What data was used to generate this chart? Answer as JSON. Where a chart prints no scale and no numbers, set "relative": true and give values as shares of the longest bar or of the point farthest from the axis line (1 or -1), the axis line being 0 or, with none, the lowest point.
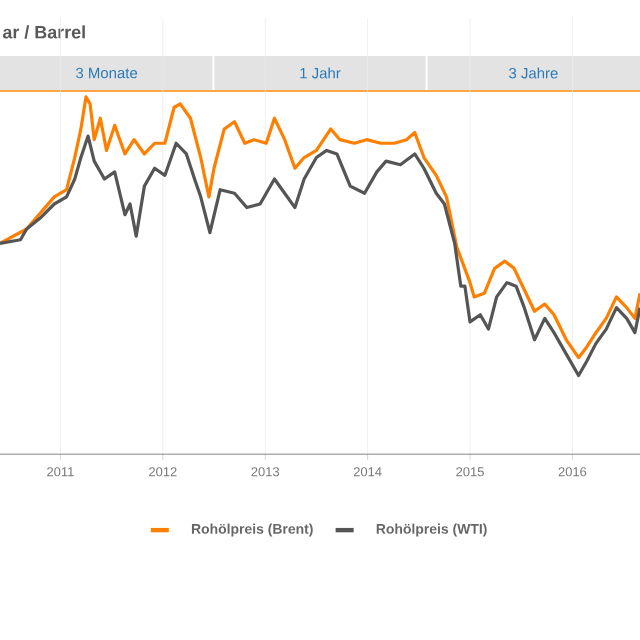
{
  "chart_data": {
    "type": "line",
    "title": "ar / Barrel",
    "relative": true,
    "annotations": [
      "3 Monate",
      "1 Jahr",
      "3 Jahre"
    ],
    "xlim": [
      2010.41,
      2016.66
    ],
    "xticks": [
      2011,
      2012,
      2013,
      2014,
      2015,
      2016
    ],
    "grid": "x",
    "legend": "bottom",
    "line_style": "solid",
    "marker": "none",
    "series": [
      {
        "name": "Rohölpreis (Brent)",
        "color": "#ff7f00",
        "x": [
          2010.41,
          2010.67,
          2010.94,
          2011.06,
          2011.14,
          2011.2,
          2011.25,
          2011.29,
          2011.33,
          2011.39,
          2011.45,
          2011.53,
          2011.63,
          2011.72,
          2011.82,
          2011.92,
          2012.02,
          2012.11,
          2012.17,
          2012.27,
          2012.37,
          2012.45,
          2012.5,
          2012.6,
          2012.7,
          2012.8,
          2012.89,
          2013.01,
          2013.09,
          2013.19,
          2013.29,
          2013.38,
          2013.5,
          2013.64,
          2013.73,
          2013.87,
          2013.99,
          2014.13,
          2014.26,
          2014.38,
          2014.46,
          2014.55,
          2014.67,
          2014.77,
          2014.87,
          2015.0,
          2015.04,
          2015.14,
          2015.24,
          2015.34,
          2015.43,
          2015.53,
          2015.63,
          2015.73,
          2015.82,
          2015.94,
          2016.06,
          2016.14,
          2016.23,
          2016.33,
          2016.43,
          2016.53,
          2016.61,
          2016.66
        ],
        "values": [
          0.59,
          0.63,
          0.72,
          0.74,
          0.83,
          0.91,
          1.0,
          0.98,
          0.88,
          0.94,
          0.85,
          0.92,
          0.84,
          0.88,
          0.84,
          0.87,
          0.87,
          0.97,
          0.98,
          0.94,
          0.83,
          0.72,
          0.8,
          0.91,
          0.93,
          0.87,
          0.88,
          0.87,
          0.94,
          0.88,
          0.8,
          0.83,
          0.85,
          0.91,
          0.88,
          0.87,
          0.88,
          0.87,
          0.87,
          0.88,
          0.9,
          0.83,
          0.78,
          0.72,
          0.58,
          0.48,
          0.44,
          0.45,
          0.52,
          0.54,
          0.52,
          0.46,
          0.4,
          0.42,
          0.39,
          0.32,
          0.27,
          0.3,
          0.34,
          0.38,
          0.44,
          0.41,
          0.38,
          0.45
        ]
      },
      {
        "name": "Rohölpreis (WTI)",
        "color": "#555555",
        "x": [
          2010.41,
          2010.61,
          2010.67,
          2010.8,
          2010.94,
          2011.06,
          2011.14,
          2011.2,
          2011.27,
          2011.33,
          2011.43,
          2011.53,
          2011.63,
          2011.68,
          2011.74,
          2011.82,
          2011.92,
          2012.02,
          2012.13,
          2012.23,
          2012.31,
          2012.37,
          2012.46,
          2012.56,
          2012.7,
          2012.82,
          2012.95,
          2013.09,
          2013.19,
          2013.29,
          2013.38,
          2013.5,
          2013.6,
          2013.7,
          2013.83,
          2013.97,
          2014.09,
          2014.18,
          2014.32,
          2014.46,
          2014.55,
          2014.67,
          2014.75,
          2014.85,
          2014.91,
          2014.95,
          2015.0,
          2015.1,
          2015.18,
          2015.26,
          2015.36,
          2015.45,
          2015.53,
          2015.63,
          2015.73,
          2015.82,
          2015.94,
          2016.06,
          2016.14,
          2016.23,
          2016.33,
          2016.43,
          2016.53,
          2016.61,
          2016.66
        ],
        "values": [
          0.59,
          0.6,
          0.63,
          0.66,
          0.7,
          0.72,
          0.77,
          0.83,
          0.89,
          0.82,
          0.77,
          0.79,
          0.67,
          0.7,
          0.61,
          0.75,
          0.8,
          0.78,
          0.87,
          0.84,
          0.77,
          0.72,
          0.62,
          0.74,
          0.73,
          0.69,
          0.7,
          0.77,
          0.73,
          0.69,
          0.77,
          0.83,
          0.85,
          0.84,
          0.75,
          0.73,
          0.79,
          0.82,
          0.81,
          0.84,
          0.8,
          0.73,
          0.7,
          0.59,
          0.47,
          0.47,
          0.37,
          0.39,
          0.35,
          0.44,
          0.48,
          0.47,
          0.41,
          0.32,
          0.38,
          0.34,
          0.28,
          0.22,
          0.26,
          0.31,
          0.35,
          0.41,
          0.38,
          0.34,
          0.41
        ]
      }
    ]
  }
}
